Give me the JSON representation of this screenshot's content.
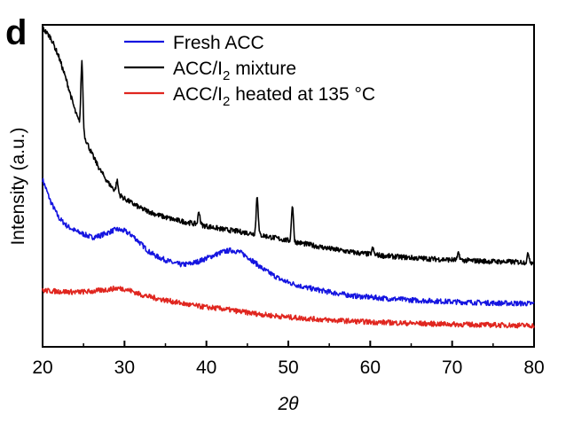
{
  "panel_label": "d",
  "chart_data": {
    "type": "line",
    "xlabel": "2θ",
    "ylabel": "Intensity (a.u.)",
    "xlim": [
      20,
      80
    ],
    "xticks": [
      20,
      30,
      40,
      50,
      60,
      70,
      80
    ],
    "ylim": [
      0,
      100
    ],
    "yticks_shown": false,
    "grid": false,
    "legend_position": "top-center",
    "series": [
      {
        "name": "Fresh ACC",
        "legend_main": "Fresh ACC",
        "color": "#1515e0",
        "points": [
          [
            20,
            52
          ],
          [
            21,
            45
          ],
          [
            22,
            40
          ],
          [
            23,
            37.5
          ],
          [
            24,
            36
          ],
          [
            25,
            35
          ],
          [
            26,
            34
          ],
          [
            27,
            34.5
          ],
          [
            28,
            35.5
          ],
          [
            29,
            36.5
          ],
          [
            30,
            36
          ],
          [
            31,
            34.5
          ],
          [
            32,
            32
          ],
          [
            33,
            29.5
          ],
          [
            34,
            28
          ],
          [
            35,
            27
          ],
          [
            36,
            26
          ],
          [
            37,
            25.5
          ],
          [
            38,
            25.8
          ],
          [
            39,
            26.5
          ],
          [
            40,
            27.5
          ],
          [
            41,
            28.5
          ],
          [
            42,
            29.5
          ],
          [
            43,
            30
          ],
          [
            44,
            29.5
          ],
          [
            45,
            28
          ],
          [
            46,
            26
          ],
          [
            47,
            24
          ],
          [
            48,
            22.5
          ],
          [
            49,
            21
          ],
          [
            50,
            20
          ],
          [
            52,
            18.5
          ],
          [
            55,
            17
          ],
          [
            58,
            15.8
          ],
          [
            62,
            15
          ],
          [
            66,
            14.4
          ],
          [
            70,
            14
          ],
          [
            75,
            13.6
          ],
          [
            80,
            13.4
          ]
        ],
        "peaks": []
      },
      {
        "name": "ACC/I2 mixture",
        "legend_main": "ACC/I",
        "legend_sub": "2",
        "legend_tail": " mixture",
        "color": "#000000",
        "points": [
          [
            20,
            99
          ],
          [
            21,
            96
          ],
          [
            22,
            90
          ],
          [
            23,
            82
          ],
          [
            24,
            73
          ],
          [
            25,
            66
          ],
          [
            26,
            60
          ],
          [
            27,
            55
          ],
          [
            28,
            51
          ],
          [
            29,
            48
          ],
          [
            30,
            46
          ],
          [
            32,
            43
          ],
          [
            34,
            41
          ],
          [
            36,
            39.5
          ],
          [
            38,
            38.5
          ],
          [
            40,
            37.5
          ],
          [
            42,
            36.5
          ],
          [
            44,
            35.8
          ],
          [
            46,
            35
          ],
          [
            48,
            34
          ],
          [
            50,
            33
          ],
          [
            52,
            32
          ],
          [
            55,
            30.5
          ],
          [
            58,
            29.3
          ],
          [
            62,
            28.2
          ],
          [
            66,
            27.5
          ],
          [
            70,
            27
          ],
          [
            75,
            26.5
          ],
          [
            80,
            26.2
          ]
        ],
        "peaks": [
          [
            24.8,
            88.5
          ],
          [
            29.1,
            51.5
          ],
          [
            39.1,
            42
          ],
          [
            46.2,
            47
          ],
          [
            50.5,
            44
          ],
          [
            60.3,
            30.5
          ],
          [
            70.8,
            29
          ],
          [
            79.3,
            29
          ]
        ]
      },
      {
        "name": "ACC/I2 heated at 135 °C",
        "legend_main": "ACC/I",
        "legend_sub": "2",
        "legend_tail": "  heated at 135 °C",
        "color": "#e0261f",
        "points": [
          [
            20,
            17.5
          ],
          [
            22,
            17.2
          ],
          [
            24,
            17
          ],
          [
            26,
            17.2
          ],
          [
            28,
            17.8
          ],
          [
            29,
            18.2
          ],
          [
            30,
            18
          ],
          [
            31,
            17.2
          ],
          [
            32,
            16.2
          ],
          [
            34,
            15
          ],
          [
            36,
            14
          ],
          [
            38,
            13
          ],
          [
            40,
            12.3
          ],
          [
            42,
            11.8
          ],
          [
            44,
            11
          ],
          [
            46,
            10.3
          ],
          [
            48,
            9.7
          ],
          [
            50,
            9.2
          ],
          [
            55,
            8.3
          ],
          [
            60,
            7.7
          ],
          [
            65,
            7.3
          ],
          [
            70,
            7
          ],
          [
            75,
            6.8
          ],
          [
            80,
            6.6
          ]
        ],
        "peaks": []
      }
    ]
  }
}
